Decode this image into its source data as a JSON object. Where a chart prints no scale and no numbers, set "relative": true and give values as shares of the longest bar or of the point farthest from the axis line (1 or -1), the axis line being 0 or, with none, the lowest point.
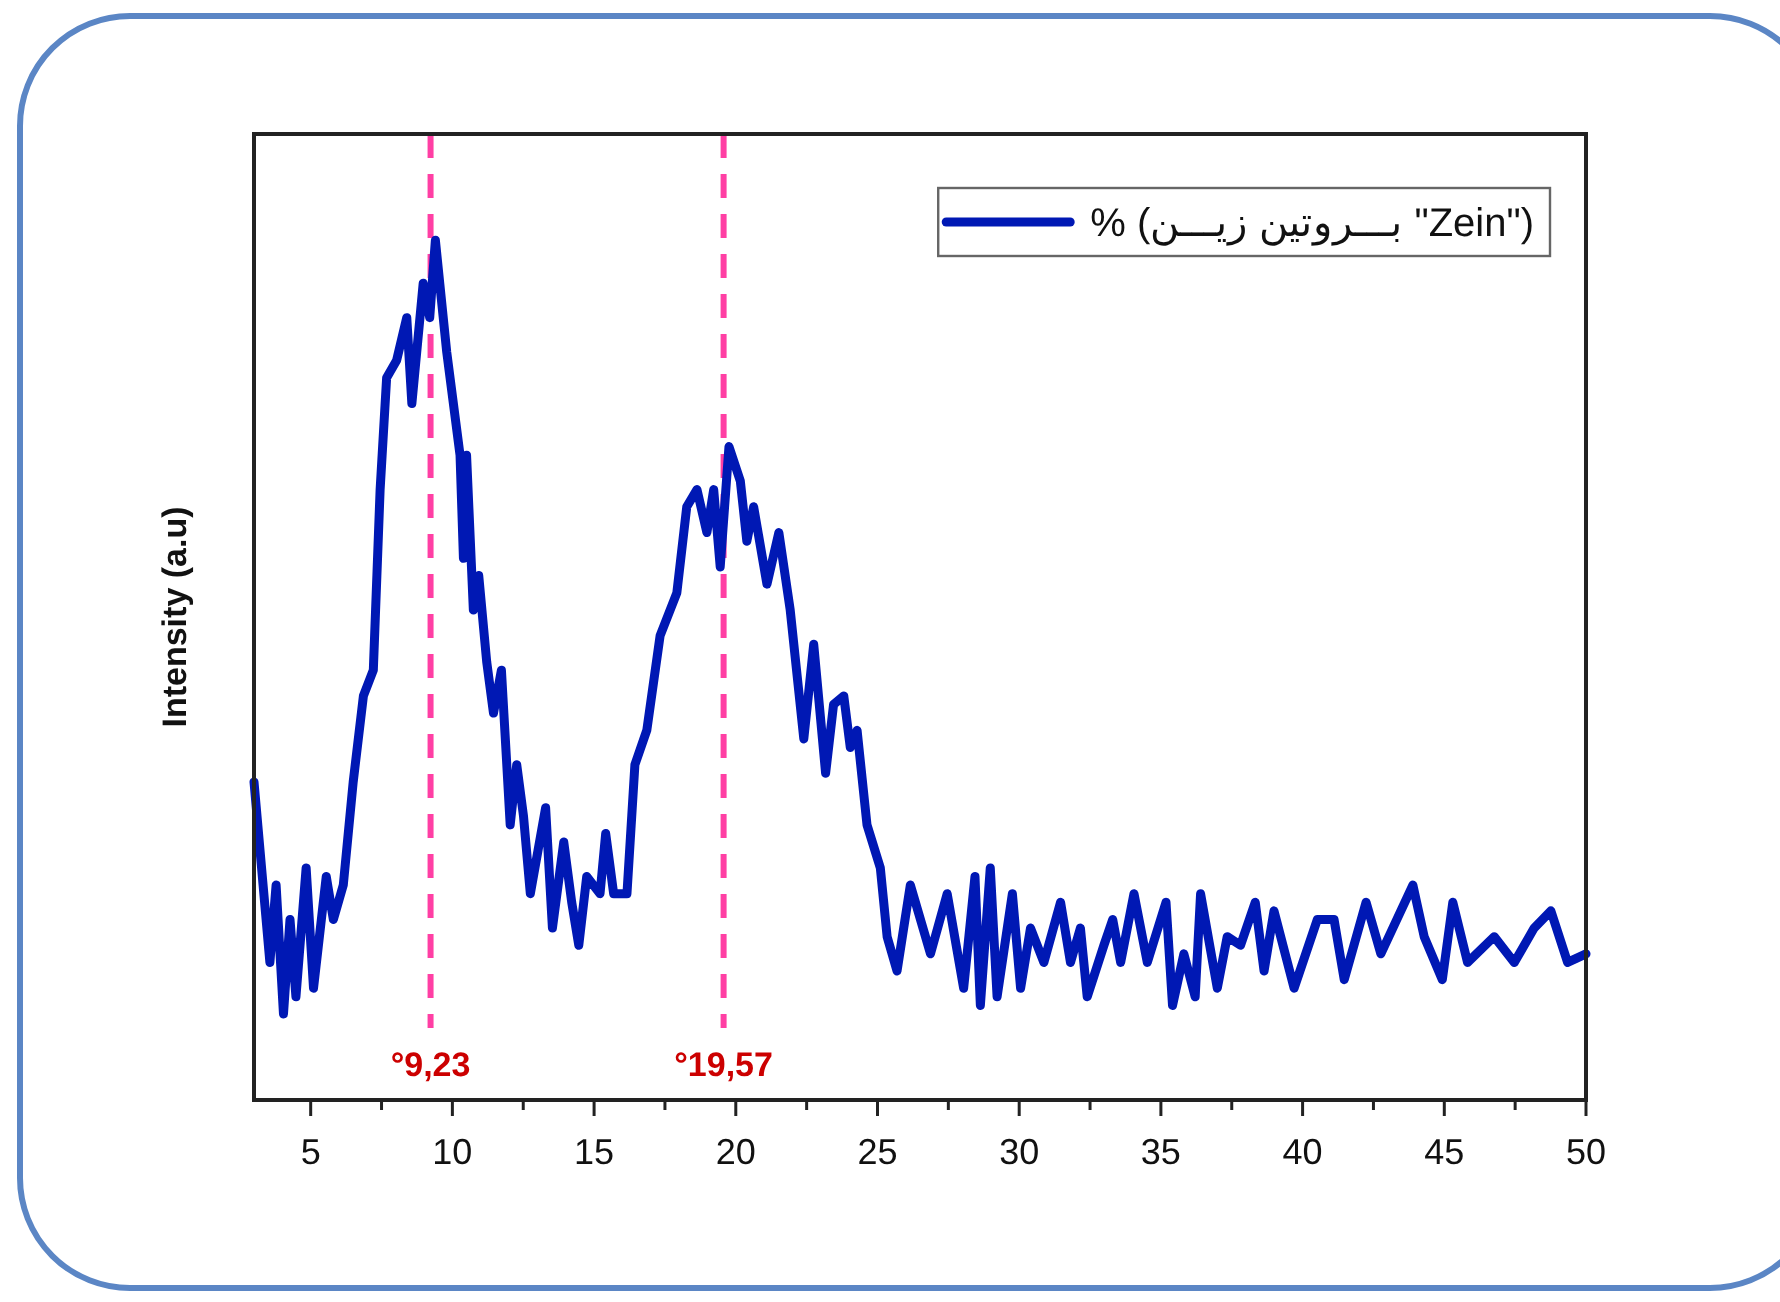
{
  "chart_data": {
    "type": "line",
    "ylabel": "Intensity (a.u)",
    "relative": true,
    "x": [
      3.0,
      3.56,
      3.78,
      4.04,
      4.27,
      4.48,
      4.84,
      5.1,
      5.55,
      5.8,
      6.15,
      6.5,
      6.86,
      7.21,
      7.45,
      7.68,
      8.03,
      8.39,
      8.57,
      8.97,
      9.2,
      9.4,
      9.8,
      10.27,
      10.39,
      10.5,
      10.74,
      10.93,
      11.21,
      11.45,
      11.73,
      12.04,
      12.27,
      12.51,
      12.75,
      13.29,
      13.53,
      13.93,
      14.21,
      14.46,
      14.74,
      15.21,
      15.41,
      15.69,
      16.16,
      16.44,
      16.86,
      17.33,
      17.92,
      18.27,
      18.63,
      18.98,
      19.22,
      19.45,
      19.76,
      20.16,
      20.39,
      20.63,
      21.1,
      21.52,
      21.92,
      22.4,
      22.75,
      23.17,
      23.45,
      23.81,
      24.04,
      24.28,
      24.63,
      25.1,
      25.34,
      25.69,
      26.16,
      26.87,
      27.46,
      28.04,
      28.44,
      28.63,
      28.98,
      29.22,
      29.76,
      30.05,
      30.4,
      30.87,
      31.46,
      31.81,
      32.16,
      32.4,
      32.99,
      33.3,
      33.58,
      34.05,
      34.52,
      35.18,
      35.41,
      35.81,
      36.21,
      36.4,
      36.99,
      37.34,
      37.81,
      38.33,
      38.64,
      38.99,
      39.7,
      40.52,
      41.11,
      41.47,
      42.24,
      42.76,
      43.89,
      44.29,
      44.93,
      45.3,
      45.82,
      46.76,
      47.47,
      48.17,
      48.76,
      49.35,
      50.0
    ],
    "series": [
      {
        "name": "% (بـــروتين زيـــن \"Zein\")",
        "color": "#0018b4",
        "values": [
          0.37,
          0.16,
          0.25,
          0.1,
          0.21,
          0.12,
          0.27,
          0.13,
          0.26,
          0.21,
          0.25,
          0.37,
          0.47,
          0.5,
          0.71,
          0.84,
          0.86,
          0.91,
          0.81,
          0.95,
          0.91,
          1.0,
          0.87,
          0.75,
          0.63,
          0.75,
          0.57,
          0.61,
          0.51,
          0.45,
          0.5,
          0.32,
          0.39,
          0.33,
          0.24,
          0.34,
          0.2,
          0.3,
          0.23,
          0.18,
          0.26,
          0.24,
          0.31,
          0.24,
          0.24,
          0.39,
          0.43,
          0.54,
          0.59,
          0.69,
          0.71,
          0.66,
          0.71,
          0.62,
          0.76,
          0.72,
          0.65,
          0.69,
          0.6,
          0.66,
          0.57,
          0.42,
          0.53,
          0.38,
          0.46,
          0.47,
          0.41,
          0.43,
          0.32,
          0.27,
          0.19,
          0.15,
          0.25,
          0.17,
          0.24,
          0.13,
          0.26,
          0.11,
          0.27,
          0.12,
          0.24,
          0.13,
          0.2,
          0.16,
          0.23,
          0.16,
          0.2,
          0.12,
          0.18,
          0.21,
          0.16,
          0.24,
          0.16,
          0.23,
          0.11,
          0.17,
          0.12,
          0.24,
          0.13,
          0.19,
          0.18,
          0.23,
          0.15,
          0.22,
          0.13,
          0.21,
          0.21,
          0.14,
          0.23,
          0.17,
          0.25,
          0.19,
          0.14,
          0.23,
          0.16,
          0.19,
          0.16,
          0.2,
          0.22,
          0.16,
          0.17
        ]
      }
    ],
    "xlim": [
      3,
      50
    ],
    "xticks": [
      5,
      {
        "value": 7.5,
        "label": null
      },
      10,
      {
        "value": 12.5,
        "label": null
      },
      15,
      {
        "value": 17.5,
        "label": null
      },
      20,
      {
        "value": 22.5,
        "label": null
      },
      25,
      {
        "value": 27.5,
        "label": null
      },
      30,
      {
        "value": 32.5,
        "label": null
      },
      35,
      {
        "value": 37.5,
        "label": null
      },
      40,
      {
        "value": 42.5,
        "label": null
      },
      45,
      {
        "value": 47.5,
        "label": null
      },
      50
    ],
    "ref_lines": [
      {
        "axis": "x",
        "value": 9.23,
        "label": "°9,23",
        "color": "#ff3fa4",
        "line_style": "dashed"
      },
      {
        "axis": "x",
        "value": 19.57,
        "label": "°19,57",
        "color": "#ff3fa4",
        "line_style": "dashed"
      }
    ],
    "legend": "top right",
    "grid": false,
    "line_style": "solid",
    "marker": "none"
  }
}
